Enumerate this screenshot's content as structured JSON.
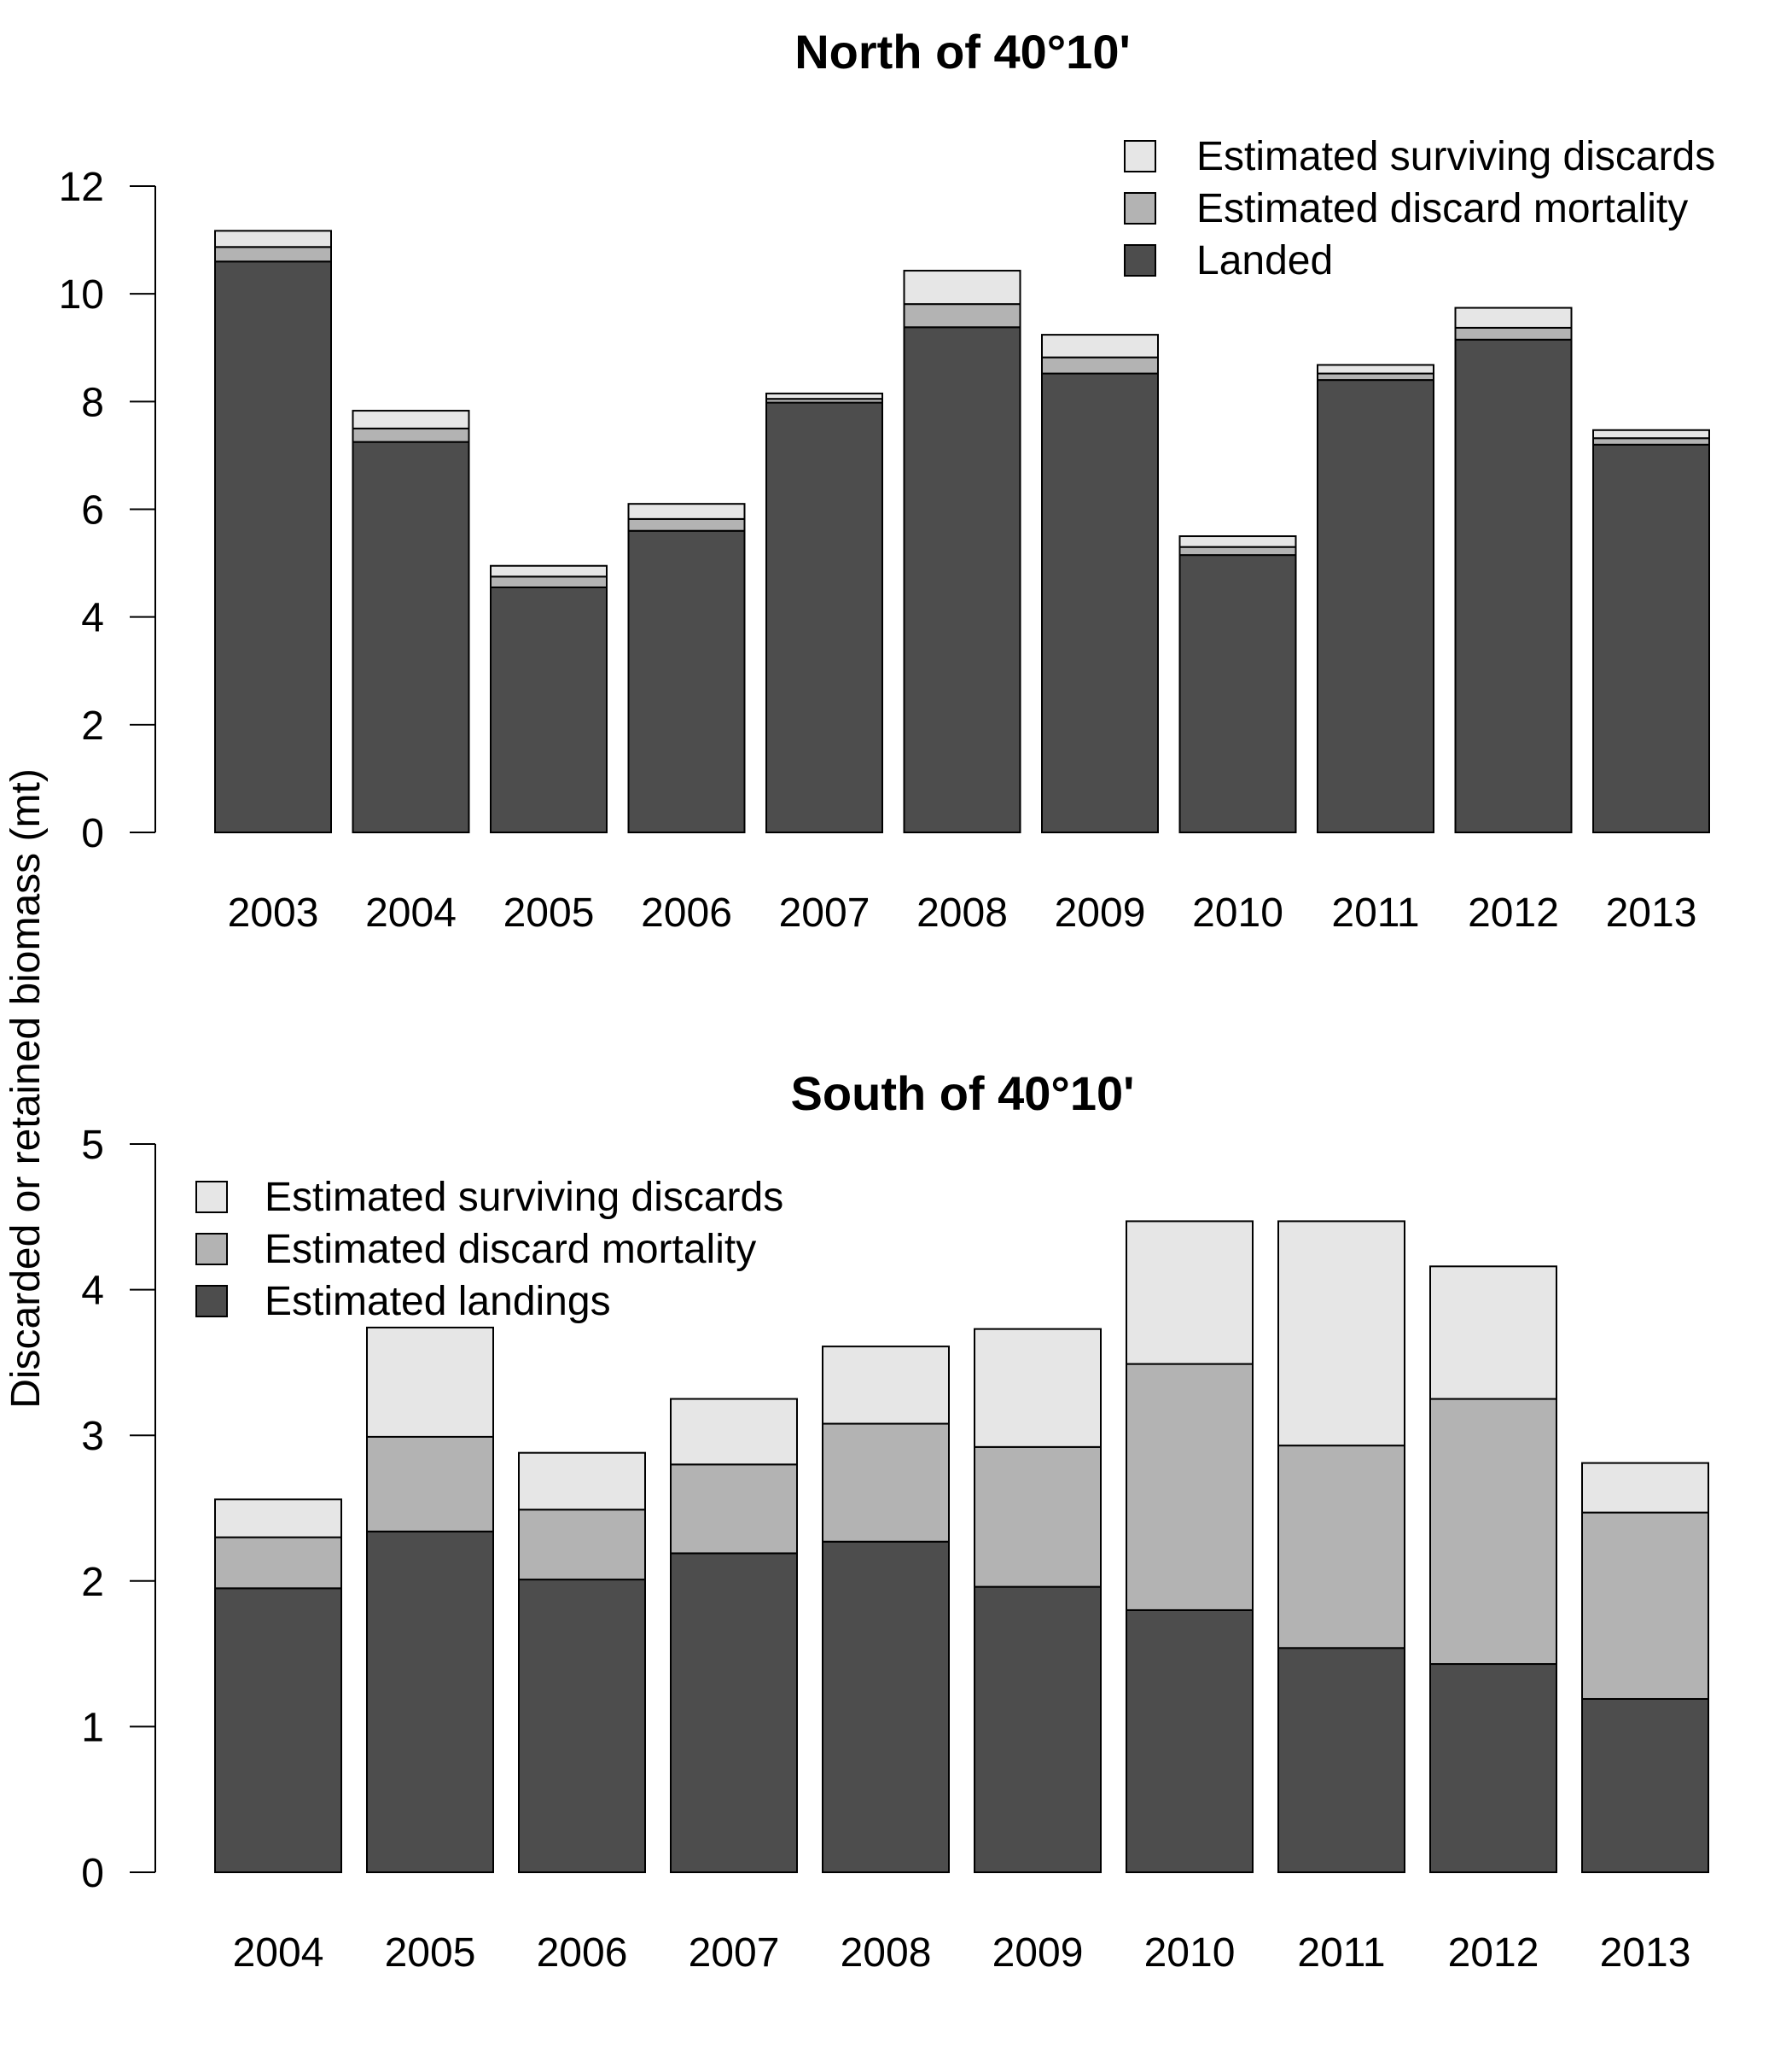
{
  "y_axis_label": "Discarded or retained biomass (mt)",
  "colors": {
    "landings": "#4d4d4d",
    "mortality": "#b3b3b3",
    "surviving": "#e6e6e6",
    "outline": "#000000"
  },
  "chart_data": [
    {
      "type": "bar",
      "stacked": true,
      "title": "North of 40°10'",
      "categories": [
        "2003",
        "2004",
        "2005",
        "2006",
        "2007",
        "2008",
        "2009",
        "2010",
        "2011",
        "2012",
        "2013"
      ],
      "ylim": [
        0,
        12
      ],
      "yticks": [
        "0",
        "2",
        "4",
        "6",
        "8",
        "10",
        "12"
      ],
      "legend_position": "top-right",
      "series": [
        {
          "name": "Landed",
          "color": "#4d4d4d",
          "values": [
            10.6,
            7.25,
            4.55,
            5.6,
            7.98,
            9.38,
            8.52,
            5.15,
            8.4,
            9.15,
            7.2
          ]
        },
        {
          "name": "Estimated discard mortality",
          "color": "#b3b3b3",
          "values": [
            0.27,
            0.25,
            0.2,
            0.22,
            0.07,
            0.43,
            0.3,
            0.15,
            0.12,
            0.22,
            0.12
          ]
        },
        {
          "name": "Estimated surviving discards",
          "color": "#e6e6e6",
          "values": [
            0.3,
            0.33,
            0.2,
            0.28,
            0.1,
            0.62,
            0.42,
            0.2,
            0.16,
            0.37,
            0.15
          ]
        }
      ]
    },
    {
      "type": "bar",
      "stacked": true,
      "title": "South of 40°10'",
      "categories": [
        "2004",
        "2005",
        "2006",
        "2007",
        "2008",
        "2009",
        "2010",
        "2011",
        "2012",
        "2013"
      ],
      "ylim": [
        0,
        5
      ],
      "yticks": [
        "0",
        "1",
        "2",
        "3",
        "4",
        "5"
      ],
      "legend_position": "top-left",
      "series": [
        {
          "name": "Estimated landings",
          "color": "#4d4d4d",
          "values": [
            1.95,
            2.34,
            2.01,
            2.19,
            2.27,
            1.96,
            1.8,
            1.54,
            1.43,
            1.19
          ]
        },
        {
          "name": "Estimated discard mortality",
          "color": "#b3b3b3",
          "values": [
            0.35,
            0.65,
            0.48,
            0.61,
            0.81,
            0.96,
            1.69,
            1.39,
            1.82,
            1.28
          ]
        },
        {
          "name": "Estimated surviving discards",
          "color": "#e6e6e6",
          "values": [
            0.26,
            0.75,
            0.39,
            0.45,
            0.53,
            0.81,
            0.98,
            1.54,
            0.91,
            0.34
          ]
        }
      ]
    }
  ]
}
